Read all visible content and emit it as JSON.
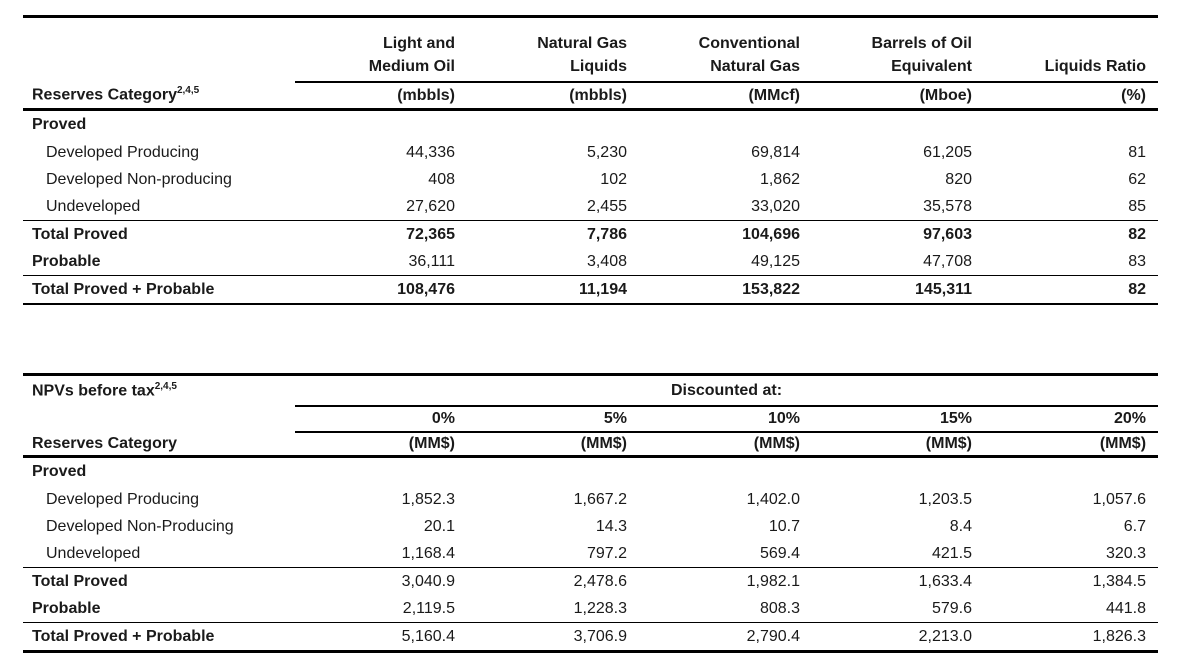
{
  "colors": {
    "background": "#ffffff",
    "text": "#1a1a1a",
    "rule": "#000000"
  },
  "table1": {
    "corner_header": "Reserves Category",
    "corner_superscript": "2,4,5",
    "columns": [
      {
        "line1": "Light and",
        "line2": "Medium Oil",
        "unit": "(mbbls)"
      },
      {
        "line1": "Natural Gas",
        "line2": "Liquids",
        "unit": "(mbbls)"
      },
      {
        "line1": "Conventional",
        "line2": "Natural Gas",
        "unit": "(MMcf)"
      },
      {
        "line1": "Barrels of Oil",
        "line2": "Equivalent",
        "unit": "(Mboe)"
      },
      {
        "line1": "",
        "line2": "Liquids Ratio",
        "unit": "(%)"
      }
    ],
    "rows": [
      {
        "label": "Proved",
        "values": [
          "",
          "",
          "",
          "",
          ""
        ]
      },
      {
        "label": "Developed Producing",
        "values": [
          "44,336",
          "5,230",
          "69,814",
          "61,205",
          "81"
        ]
      },
      {
        "label": "Developed Non-producing",
        "values": [
          "408",
          "102",
          "1,862",
          "820",
          "62"
        ]
      },
      {
        "label": "Undeveloped",
        "values": [
          "27,620",
          "2,455",
          "33,020",
          "35,578",
          "85"
        ]
      },
      {
        "label": "Total Proved",
        "values": [
          "72,365",
          "7,786",
          "104,696",
          "97,603",
          "82"
        ]
      },
      {
        "label": "Probable",
        "values": [
          "36,111",
          "3,408",
          "49,125",
          "47,708",
          "83"
        ]
      },
      {
        "label": "Total Proved + Probable",
        "values": [
          "108,476",
          "11,194",
          "153,822",
          "145,311",
          "82"
        ]
      }
    ]
  },
  "table2": {
    "corner_header": "NPVs before tax",
    "corner_superscript": "2,4,5",
    "group_header": "Discounted at:",
    "left_subheader": "Reserves Category",
    "columns": [
      {
        "rate": "0%",
        "unit": "(MM$)"
      },
      {
        "rate": "5%",
        "unit": "(MM$)"
      },
      {
        "rate": "10%",
        "unit": "(MM$)"
      },
      {
        "rate": "15%",
        "unit": "(MM$)"
      },
      {
        "rate": "20%",
        "unit": "(MM$)"
      }
    ],
    "rows": [
      {
        "label": "Proved",
        "values": [
          "",
          "",
          "",
          "",
          ""
        ]
      },
      {
        "label": "Developed Producing",
        "values": [
          "1,852.3",
          "1,667.2",
          "1,402.0",
          "1,203.5",
          "1,057.6"
        ]
      },
      {
        "label": "Developed Non-Producing",
        "values": [
          "20.1",
          "14.3",
          "10.7",
          "8.4",
          "6.7"
        ]
      },
      {
        "label": "Undeveloped",
        "values": [
          "1,168.4",
          "797.2",
          "569.4",
          "421.5",
          "320.3"
        ]
      },
      {
        "label": "Total Proved",
        "values": [
          "3,040.9",
          "2,478.6",
          "1,982.1",
          "1,633.4",
          "1,384.5"
        ]
      },
      {
        "label": "Probable",
        "values": [
          "2,119.5",
          "1,228.3",
          "808.3",
          "579.6",
          "441.8"
        ]
      },
      {
        "label": "Total Proved + Probable",
        "values": [
          "5,160.4",
          "3,706.9",
          "2,790.4",
          "2,213.0",
          "1,826.3"
        ]
      }
    ]
  }
}
